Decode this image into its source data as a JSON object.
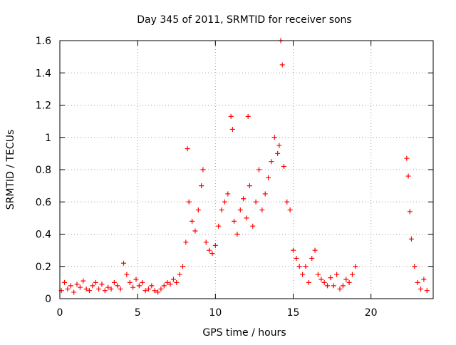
{
  "chart_data": {
    "type": "scatter",
    "title": "Day 345 of 2011, SRMTID for receiver sons",
    "xlabel": "GPS time / hours",
    "ylabel": "SRMTID / TECUs",
    "xlim": [
      0,
      24
    ],
    "ylim": [
      0,
      1.6
    ],
    "x_ticks": [
      0,
      5,
      10,
      15,
      20
    ],
    "x_tick_labels": [
      "0",
      "5",
      "10",
      "15",
      "20"
    ],
    "y_ticks": [
      0,
      0.2,
      0.4,
      0.6,
      0.8,
      1.0,
      1.2,
      1.4,
      1.6
    ],
    "y_tick_labels": [
      "0",
      "0.2",
      "0.4",
      "0.6",
      "0.8",
      "1",
      "1.2",
      "1.4",
      "1.6"
    ],
    "grid": true,
    "legend": "none",
    "marker": "+",
    "color": "#ff0000",
    "series": [
      {
        "name": "SRMTID",
        "x": [
          0.1,
          0.3,
          0.5,
          0.7,
          0.9,
          1.1,
          1.3,
          1.5,
          1.7,
          1.9,
          2.1,
          2.3,
          2.5,
          2.7,
          2.9,
          3.1,
          3.3,
          3.5,
          3.7,
          3.9,
          4.1,
          4.3,
          4.5,
          4.7,
          4.9,
          5.1,
          5.3,
          5.5,
          5.7,
          5.9,
          6.1,
          6.3,
          6.5,
          6.7,
          6.9,
          7.1,
          7.3,
          7.5,
          7.7,
          7.9,
          8.1,
          8.2,
          8.3,
          8.5,
          8.7,
          8.9,
          9.1,
          9.2,
          9.4,
          9.6,
          9.8,
          10.0,
          10.2,
          10.4,
          10.6,
          10.8,
          11.0,
          11.1,
          11.2,
          11.4,
          11.6,
          11.8,
          12.0,
          12.1,
          12.2,
          12.4,
          12.6,
          12.8,
          13.0,
          13.2,
          13.4,
          13.6,
          13.8,
          14.0,
          14.1,
          14.2,
          14.3,
          14.4,
          14.6,
          14.8,
          15.0,
          15.2,
          15.4,
          15.6,
          15.8,
          16.0,
          16.2,
          16.4,
          16.6,
          16.8,
          17.0,
          17.2,
          17.4,
          17.6,
          17.8,
          18.0,
          18.2,
          18.4,
          18.6,
          18.8,
          19.0,
          22.3,
          22.4,
          22.5,
          22.6,
          22.8,
          23.0,
          23.2,
          23.4,
          23.6
        ],
        "y": [
          0.05,
          0.1,
          0.06,
          0.08,
          0.04,
          0.09,
          0.07,
          0.11,
          0.06,
          0.05,
          0.08,
          0.1,
          0.06,
          0.09,
          0.05,
          0.07,
          0.06,
          0.1,
          0.08,
          0.06,
          0.22,
          0.15,
          0.1,
          0.07,
          0.12,
          0.08,
          0.1,
          0.05,
          0.06,
          0.08,
          0.05,
          0.04,
          0.06,
          0.08,
          0.1,
          0.09,
          0.12,
          0.1,
          0.15,
          0.2,
          0.35,
          0.93,
          0.6,
          0.48,
          0.42,
          0.55,
          0.7,
          0.8,
          0.35,
          0.3,
          0.28,
          0.33,
          0.45,
          0.55,
          0.6,
          0.65,
          1.13,
          1.05,
          0.48,
          0.4,
          0.55,
          0.62,
          0.5,
          1.13,
          0.7,
          0.45,
          0.6,
          0.8,
          0.55,
          0.65,
          0.75,
          0.85,
          1.0,
          0.9,
          0.95,
          1.6,
          1.45,
          0.82,
          0.6,
          0.55,
          0.3,
          0.25,
          0.2,
          0.15,
          0.2,
          0.1,
          0.25,
          0.3,
          0.15,
          0.12,
          0.1,
          0.08,
          0.13,
          0.08,
          0.15,
          0.06,
          0.08,
          0.12,
          0.1,
          0.15,
          0.2,
          0.87,
          0.76,
          0.54,
          0.37,
          0.2,
          0.1,
          0.06,
          0.12,
          0.05
        ]
      }
    ]
  }
}
